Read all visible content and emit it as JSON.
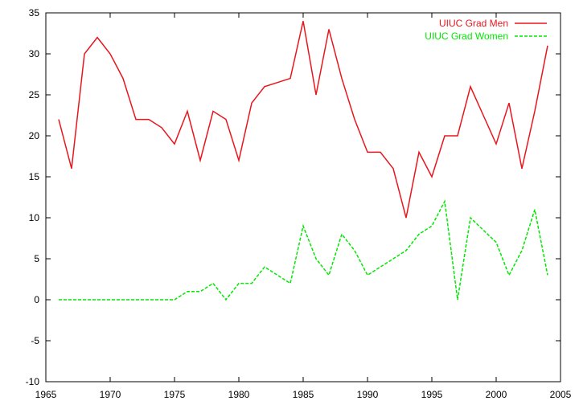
{
  "chart_data": {
    "type": "line",
    "title": "",
    "xlabel": "",
    "ylabel": "",
    "xlim": [
      1965,
      2005
    ],
    "ylim": [
      -10,
      35
    ],
    "xticks": [
      1965,
      1970,
      1975,
      1980,
      1985,
      1990,
      1995,
      2000,
      2005
    ],
    "yticks": [
      -10,
      -5,
      0,
      5,
      10,
      15,
      20,
      25,
      30,
      35
    ],
    "grid": false,
    "legend": "top-right",
    "x": [
      1966,
      1967,
      1968,
      1969,
      1970,
      1971,
      1972,
      1973,
      1974,
      1975,
      1976,
      1977,
      1978,
      1979,
      1980,
      1981,
      1982,
      1983,
      1984,
      1985,
      1986,
      1987,
      1988,
      1989,
      1990,
      1991,
      1992,
      1993,
      1994,
      1995,
      1996,
      1997,
      1998,
      1999,
      2000,
      2001,
      2002,
      2003,
      2004
    ],
    "series": [
      {
        "name": "UIUC Grad Men",
        "color": "#e8161d",
        "style": "solid",
        "values": [
          22,
          16,
          30,
          32,
          30,
          27,
          22,
          22,
          21,
          19,
          23,
          17,
          23,
          22,
          17,
          24,
          26,
          26.5,
          27,
          34,
          25,
          33,
          27,
          22,
          18,
          18,
          16,
          10,
          18,
          15,
          20,
          20,
          26,
          22.5,
          19,
          24,
          16,
          23,
          31
        ]
      },
      {
        "name": "UIUC Grad Women",
        "color": "#00e800",
        "style": "dashed",
        "values": [
          0,
          0,
          0,
          0,
          0,
          0,
          0,
          0,
          0,
          0,
          1,
          1,
          2,
          0,
          2,
          2,
          4,
          3,
          2,
          9,
          5,
          3,
          8,
          6,
          3,
          4,
          5,
          6,
          8,
          9,
          12,
          0,
          10,
          8.5,
          7,
          3,
          6,
          11,
          3
        ]
      }
    ]
  }
}
